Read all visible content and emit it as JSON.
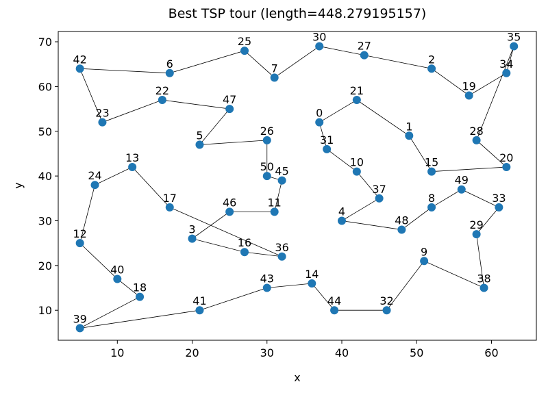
{
  "chart_data": {
    "type": "tour",
    "title": "Best TSP tour (length=448.279195157)",
    "x_label": "x",
    "y_label": "y",
    "color": "#1f77b4",
    "point_labels": [
      "0",
      "1",
      "2",
      "3",
      "4",
      "5",
      "6",
      "7",
      "8",
      "9",
      "10",
      "11",
      "12",
      "13",
      "14",
      "15",
      "16",
      "17",
      "18",
      "19",
      "20",
      "21",
      "22",
      "23",
      "24",
      "25",
      "26",
      "27",
      "28",
      "29",
      "30",
      "31",
      "32",
      "33",
      "34",
      "35",
      "36",
      "37",
      "38",
      "39",
      "40",
      "41",
      "42",
      "43",
      "44",
      "45",
      "46",
      "47",
      "48",
      "49",
      "50"
    ],
    "x": [
      37,
      49,
      52,
      20,
      40,
      21,
      17,
      31,
      52,
      51,
      42,
      31,
      5,
      12,
      36,
      52,
      27,
      17,
      13,
      57,
      62,
      42,
      16,
      8,
      7,
      27,
      30,
      43,
      58,
      58,
      37,
      38,
      46,
      61,
      62,
      63,
      32,
      45,
      59,
      5,
      10,
      21,
      5,
      30,
      39,
      32,
      25,
      25,
      48,
      56,
      30
    ],
    "y": [
      52,
      49,
      64,
      26,
      30,
      47,
      63,
      62,
      33,
      21,
      41,
      32,
      25,
      42,
      16,
      41,
      23,
      33,
      13,
      58,
      42,
      57,
      57,
      52,
      38,
      68,
      48,
      67,
      48,
      27,
      69,
      46,
      10,
      33,
      63,
      69,
      22,
      35,
      15,
      6,
      17,
      10,
      64,
      15,
      10,
      39,
      32,
      55,
      28,
      37,
      40
    ],
    "tour": [
      0,
      21,
      1,
      15,
      20,
      28,
      35,
      34,
      19,
      2,
      27,
      30,
      7,
      25,
      6,
      42,
      23,
      22,
      47,
      5,
      26,
      50,
      45,
      11,
      46,
      3,
      16,
      36,
      17,
      13,
      24,
      12,
      40,
      18,
      39,
      41,
      43,
      14,
      44,
      32,
      9,
      38,
      29,
      33,
      49,
      8,
      48,
      4,
      37,
      10,
      31
    ],
    "xlim": [
      2.1,
      66.0
    ],
    "ylim": [
      3.3,
      72.3
    ],
    "xticks": [
      10,
      20,
      30,
      40,
      50,
      60
    ],
    "yticks": [
      10,
      20,
      30,
      40,
      50,
      60,
      70
    ]
  }
}
